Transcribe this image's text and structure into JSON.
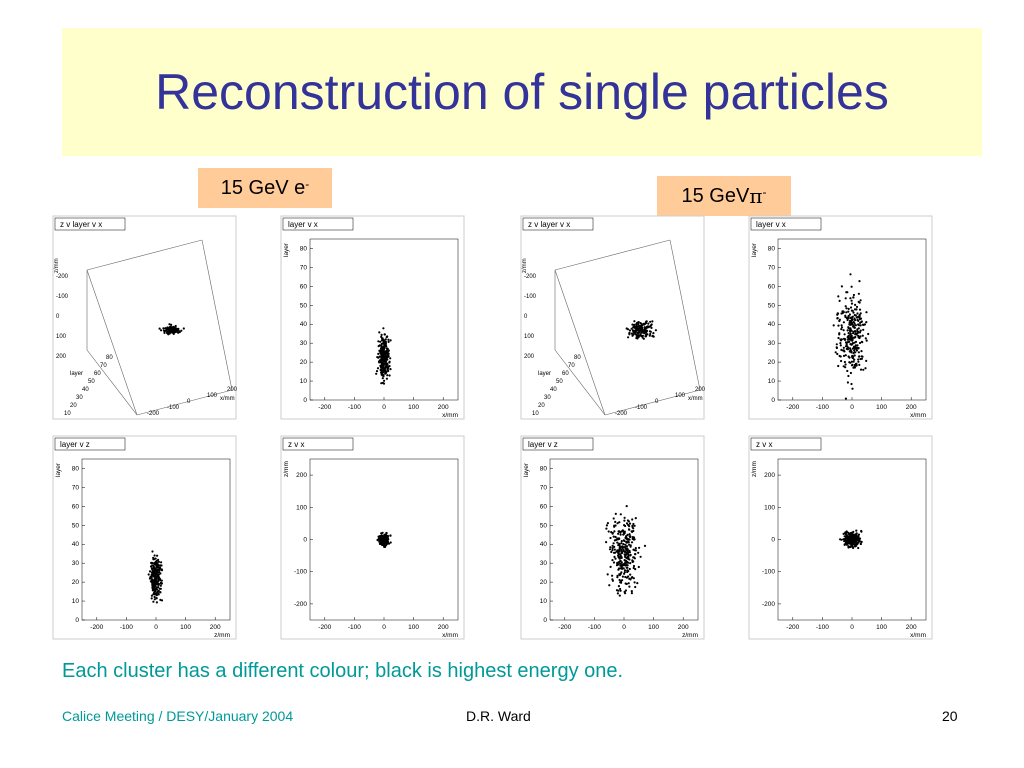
{
  "title": "Reconstruction of single particles",
  "labels": {
    "electron": {
      "text": "15 GeV e",
      "sup": "-"
    },
    "pion": {
      "text": "15 GeV ",
      "symbol": "π",
      "sup": "-"
    }
  },
  "caption": "Each cluster has a different colour; black is highest energy one.",
  "footer": {
    "left": "Calice Meeting / DESY/January 2004",
    "center": "D.R. Ward",
    "page": "20"
  },
  "colors": {
    "title": "#333399",
    "title_bg": "#ffffcc",
    "label_bg": "#ffcc99",
    "caption": "#009999"
  },
  "chart_data": [
    {
      "id": "e-zvlayervx",
      "type": "scatter",
      "projection": "3d",
      "title": "z v layer v x",
      "xlabel": "x/mm",
      "ylabel": "layer",
      "zlabel": "z/mm",
      "xticks": [
        "-200",
        "-100",
        "0",
        "100",
        "200"
      ],
      "layerticks": [
        "10",
        "20",
        "30",
        "40",
        "50",
        "60",
        "70",
        "80"
      ],
      "zticks": [
        "-200",
        "-100",
        "0",
        "100",
        "200"
      ],
      "xlim": [
        -250,
        250
      ],
      "ylim": [
        0,
        85
      ],
      "zlim": [
        -250,
        250
      ],
      "series": [
        {
          "color": "#000000",
          "cx": 0,
          "cy": -20,
          "sx": 25,
          "sy": 12,
          "n": 120
        }
      ]
    },
    {
      "id": "e-layervx",
      "type": "scatter",
      "title": "layer v x",
      "xlabel": "x/mm",
      "ylabel": "layer",
      "xticks": [
        "-200",
        "-100",
        "0",
        "100",
        "200"
      ],
      "yticks": [
        "0",
        "10",
        "20",
        "30",
        "40",
        "50",
        "60",
        "70",
        "80"
      ],
      "xlim": [
        -250,
        250
      ],
      "ylim": [
        0,
        85
      ],
      "series": [
        {
          "color": "#000000",
          "cx": 0,
          "cy": 22,
          "sx": 15,
          "sy": 10,
          "n": 240
        }
      ]
    },
    {
      "id": "e-layervz",
      "type": "scatter",
      "title": "layer v z",
      "xlabel": "z/mm",
      "ylabel": "layer",
      "xticks": [
        "-200",
        "-100",
        "0",
        "100",
        "200"
      ],
      "yticks": [
        "0",
        "10",
        "20",
        "30",
        "40",
        "50",
        "60",
        "70",
        "80"
      ],
      "xlim": [
        -250,
        250
      ],
      "ylim": [
        0,
        85
      ],
      "series": [
        {
          "color": "#000000",
          "cx": 0,
          "cy": 22,
          "sx": 15,
          "sy": 10,
          "n": 240
        }
      ]
    },
    {
      "id": "e-zvx",
      "type": "scatter",
      "title": "z v x",
      "xlabel": "x/mm",
      "ylabel": "z/mm",
      "xticks": [
        "-200",
        "-100",
        "0",
        "100",
        "200"
      ],
      "yticks": [
        "-200",
        "-100",
        "0",
        "100",
        "200"
      ],
      "xlim": [
        -250,
        250
      ],
      "ylim": [
        -250,
        250
      ],
      "series": [
        {
          "color": "#000000",
          "cx": 0,
          "cy": 0,
          "sx": 15,
          "sy": 15,
          "n": 200
        }
      ]
    },
    {
      "id": "pi-zvlayervx",
      "type": "scatter",
      "projection": "3d",
      "title": "z v layer v x",
      "xlabel": "x/mm",
      "ylabel": "layer",
      "zlabel": "z/mm",
      "xticks": [
        "-200",
        "-100",
        "0",
        "100",
        "200"
      ],
      "layerticks": [
        "10",
        "20",
        "30",
        "40",
        "50",
        "60",
        "70",
        "80"
      ],
      "zticks": [
        "-200",
        "-100",
        "0",
        "100",
        "200"
      ],
      "xlim": [
        -250,
        250
      ],
      "ylim": [
        0,
        85
      ],
      "zlim": [
        -250,
        250
      ],
      "series": [
        {
          "color": "#000000",
          "cx": 0,
          "cy": 0,
          "sx": 35,
          "sy": 25,
          "n": 150
        }
      ]
    },
    {
      "id": "pi-layervx",
      "type": "scatter",
      "title": "layer v x",
      "xlabel": "x/mm",
      "ylabel": "layer",
      "xticks": [
        "-200",
        "-100",
        "0",
        "100",
        "200"
      ],
      "yticks": [
        "0",
        "10",
        "20",
        "30",
        "40",
        "50",
        "60",
        "70",
        "80"
      ],
      "xlim": [
        -250,
        250
      ],
      "ylim": [
        0,
        85
      ],
      "series": [
        {
          "color": "#000000",
          "cx": 0,
          "cy": 35,
          "sx": 40,
          "sy": 18,
          "n": 300
        }
      ]
    },
    {
      "id": "pi-layervz",
      "type": "scatter",
      "title": "layer v z",
      "xlabel": "z/mm",
      "ylabel": "layer",
      "xticks": [
        "-200",
        "-100",
        "0",
        "100",
        "200"
      ],
      "yticks": [
        "0",
        "10",
        "20",
        "30",
        "40",
        "50",
        "60",
        "70",
        "80"
      ],
      "xlim": [
        -250,
        250
      ],
      "ylim": [
        0,
        85
      ],
      "series": [
        {
          "color": "#000000",
          "cx": 0,
          "cy": 35,
          "sx": 40,
          "sy": 18,
          "n": 300
        }
      ]
    },
    {
      "id": "pi-zvx",
      "type": "scatter",
      "title": "z v x",
      "xlabel": "x/mm",
      "ylabel": "z/mm",
      "xticks": [
        "-200",
        "-100",
        "0",
        "100",
        "200"
      ],
      "yticks": [
        "-200",
        "-100",
        "0",
        "100",
        "200"
      ],
      "xlim": [
        -250,
        250
      ],
      "ylim": [
        -250,
        250
      ],
      "series": [
        {
          "color": "#000000",
          "cx": 0,
          "cy": 0,
          "sx": 25,
          "sy": 20,
          "n": 220
        }
      ]
    }
  ]
}
